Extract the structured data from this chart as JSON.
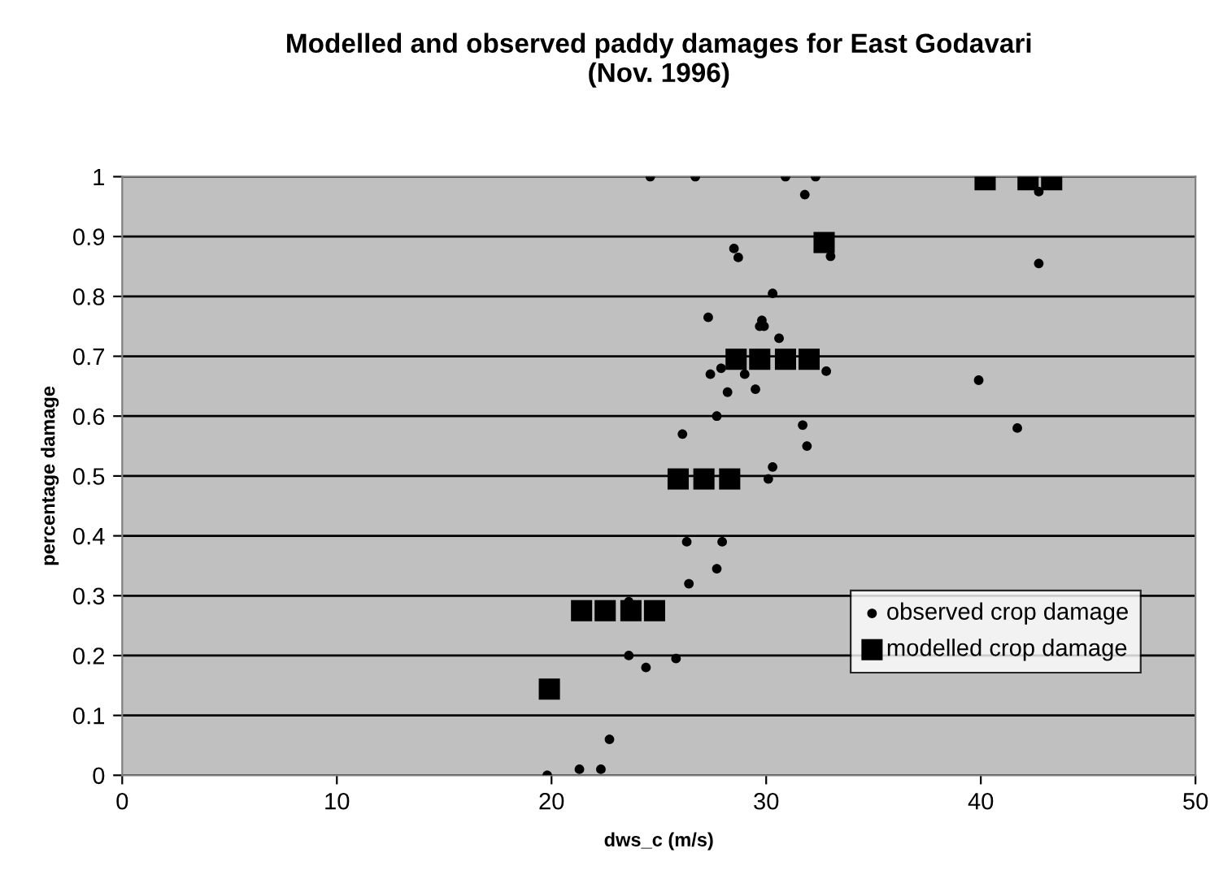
{
  "chart_data": {
    "type": "scatter",
    "title": "Modelled and observed paddy damages for East Godavari\n(Nov. 1996)",
    "xlabel": "dws_c (m/s)",
    "ylabel": "percentage damage",
    "xlim": [
      0,
      50
    ],
    "xticks": [
      0,
      10,
      20,
      30,
      40,
      50
    ],
    "ylim": [
      0,
      1
    ],
    "yticks": [
      0,
      0.1,
      0.2,
      0.3,
      0.4,
      0.5,
      0.6,
      0.7,
      0.8,
      0.9,
      1
    ],
    "grid": "y",
    "legend": "right",
    "series": [
      {
        "name": "observed crop damage",
        "color": "#000000",
        "marker": "circle",
        "x": [
          19.8,
          21.3,
          22.3,
          22.7,
          23.6,
          24.4,
          25.8,
          26.3,
          27.95,
          27.7,
          26.4,
          23.6,
          28.5,
          28.7,
          30.3,
          27.3,
          29.8,
          29.7,
          29.9,
          30.6,
          27.9,
          27.4,
          29.0,
          32.8,
          29.5,
          28.2,
          27.7,
          26.1,
          31.7,
          31.9,
          30.3,
          30.1,
          33.0,
          42.7,
          39.9,
          41.7,
          42.7,
          24.6,
          26.7,
          30.9,
          32.3,
          31.8
        ],
        "values": [
          0.0,
          0.01,
          0.01,
          0.06,
          0.2,
          0.18,
          0.195,
          0.39,
          0.39,
          0.345,
          0.32,
          0.29,
          0.88,
          0.865,
          0.805,
          0.765,
          0.76,
          0.75,
          0.75,
          0.73,
          0.68,
          0.67,
          0.67,
          0.675,
          0.645,
          0.64,
          0.6,
          0.57,
          0.585,
          0.55,
          0.515,
          0.495,
          0.867,
          0.855,
          0.66,
          0.58,
          0.975,
          1.0,
          1.0,
          1.0,
          1.0,
          0.97
        ]
      },
      {
        "name": "modelled crop damage",
        "color": "#000000",
        "marker": "square",
        "x": [
          19.9,
          21.4,
          22.5,
          23.7,
          24.8,
          25.9,
          27.1,
          28.3,
          28.6,
          29.7,
          30.9,
          32.0,
          32.7,
          40.2,
          42.2,
          43.3
        ],
        "values": [
          0.144,
          0.275,
          0.275,
          0.275,
          0.275,
          0.495,
          0.495,
          0.495,
          0.695,
          0.695,
          0.695,
          0.695,
          0.89,
          0.995,
          0.995,
          0.995
        ]
      }
    ]
  }
}
